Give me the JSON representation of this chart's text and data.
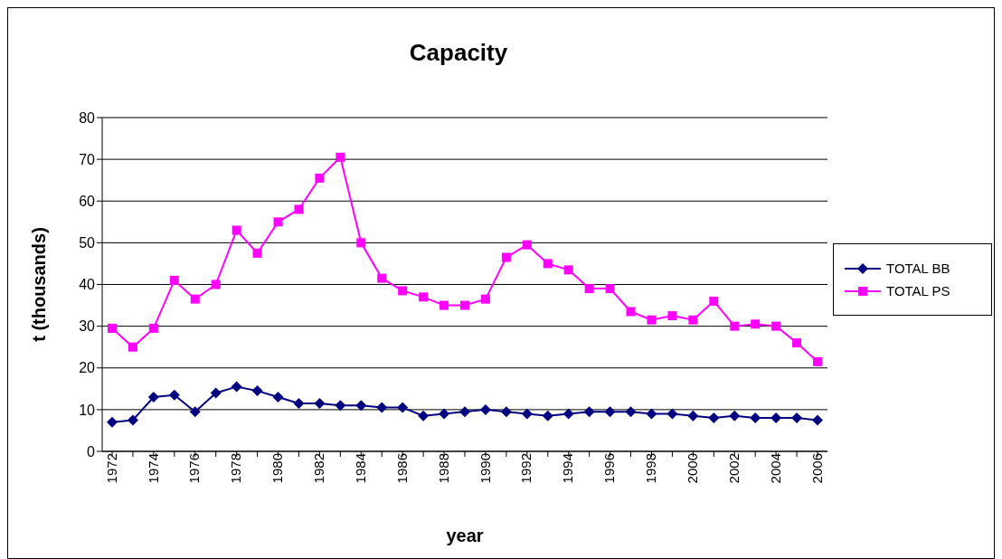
{
  "chart_data": {
    "type": "line",
    "title": "Capacity",
    "xlabel": "year",
    "ylabel": "t (thousands)",
    "categories": [
      "1972",
      null,
      "1974",
      null,
      "1976",
      null,
      "1978",
      null,
      "1980",
      null,
      "1982",
      null,
      "1984",
      null,
      "1986",
      null,
      "1988",
      null,
      "1990",
      null,
      "1992",
      null,
      "1994",
      null,
      "1996",
      null,
      "1998",
      null,
      "2000",
      null,
      "2002",
      null,
      "2004",
      null,
      "2006"
    ],
    "series": [
      {
        "name": "TOTAL BB",
        "color": "#000080",
        "marker": "diamond",
        "values": [
          7,
          7.5,
          13,
          13.5,
          9.5,
          14,
          15.5,
          14.5,
          13,
          11.5,
          11.5,
          11,
          11,
          10.5,
          10.5,
          8.5,
          9,
          9.5,
          10,
          9.5,
          9,
          8.5,
          9,
          9.5,
          9.5,
          9.5,
          9,
          9,
          8.5,
          8,
          8.5,
          8,
          8,
          8,
          7.5
        ]
      },
      {
        "name": "TOTAL PS",
        "color": "#ff00ff",
        "marker": "square",
        "values": [
          29.5,
          25,
          29.5,
          41,
          36.5,
          40,
          53,
          47.5,
          55,
          58,
          65.5,
          70.5,
          50,
          41.5,
          38.5,
          37,
          35,
          35,
          36.5,
          46.5,
          49.5,
          45,
          43.5,
          39,
          39,
          33.5,
          31.5,
          32.5,
          31.5,
          36,
          30,
          30.5,
          30,
          26,
          21.5
        ]
      }
    ],
    "ylim": [
      0,
      80
    ],
    "yticks": [
      0,
      10,
      20,
      30,
      40,
      50,
      60,
      70,
      80
    ],
    "grid": "y",
    "legend": "right",
    "line_style": "solid"
  }
}
